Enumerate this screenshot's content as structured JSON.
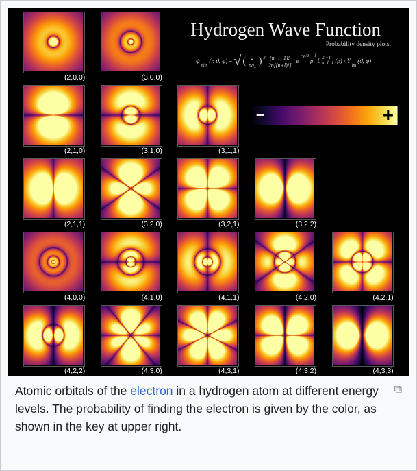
{
  "figure": {
    "title": "Hydrogen Wave Function",
    "subtitle": "Probability density plots.",
    "equation": {
      "lhs_psi": "ψ",
      "lhs_sub": "nlm",
      "lhs_args": "(r, ϑ, φ)",
      "equals": "=",
      "frac1_num": "2",
      "frac1_den": "na₀",
      "pow3": "3",
      "frac2_num": "(n−l−1)!",
      "frac2_den": "2n[(n+l)!]",
      "euler": "e",
      "e_sup": "−ρ/2",
      "rho": "ρ",
      "rho_sup": "l",
      "laguerre": "L",
      "laguerre_sup": "2l+1",
      "laguerre_sub": "n−l−1",
      "laguerre_args": "(ρ)",
      "cdot": "·",
      "harmonic": "Y",
      "harmonic_sub": "lm",
      "harmonic_args": "(ϑ, φ)"
    },
    "key": {
      "minus_label": "−",
      "plus_label": "+",
      "gradient": [
        "#000004",
        "#160b39",
        "#420a68",
        "#6a176e",
        "#932667",
        "#bc3754",
        "#dd513a",
        "#f37819",
        "#fca50a",
        "#f6d746",
        "#fcffa4"
      ]
    },
    "rows": [
      {
        "tiles": [
          {
            "label": "(2,0,0)",
            "n": 2,
            "l": 0,
            "m": 0
          },
          {
            "label": "(3,0,0)",
            "n": 3,
            "l": 0,
            "m": 0
          }
        ]
      },
      {
        "tiles": [
          {
            "label": "(2,1,0)",
            "n": 2,
            "l": 1,
            "m": 0
          },
          {
            "label": "(3,1,0)",
            "n": 3,
            "l": 1,
            "m": 0
          },
          {
            "label": "(3,1,1)",
            "n": 3,
            "l": 1,
            "m": 1
          }
        ]
      },
      {
        "tiles": [
          {
            "label": "(2,1,1)",
            "n": 2,
            "l": 1,
            "m": 1
          },
          {
            "label": "(3,2,0)",
            "n": 3,
            "l": 2,
            "m": 0
          },
          {
            "label": "(3,2,1)",
            "n": 3,
            "l": 2,
            "m": 1
          },
          {
            "label": "(3,2,2)",
            "n": 3,
            "l": 2,
            "m": 2
          }
        ]
      },
      {
        "tiles": [
          {
            "label": "(4,0,0)",
            "n": 4,
            "l": 0,
            "m": 0
          },
          {
            "label": "(4,1,0)",
            "n": 4,
            "l": 1,
            "m": 0
          },
          {
            "label": "(4,1,1)",
            "n": 4,
            "l": 1,
            "m": 1
          },
          {
            "label": "(4,2,0)",
            "n": 4,
            "l": 2,
            "m": 0
          },
          {
            "label": "(4,2,1)",
            "n": 4,
            "l": 2,
            "m": 1
          }
        ]
      },
      {
        "tiles": [
          {
            "label": "(4,2,2)",
            "n": 4,
            "l": 2,
            "m": 2
          },
          {
            "label": "(4,3,0)",
            "n": 4,
            "l": 3,
            "m": 0
          },
          {
            "label": "(4,3,1)",
            "n": 4,
            "l": 3,
            "m": 1
          },
          {
            "label": "(4,3,2)",
            "n": 4,
            "l": 3,
            "m": 2
          },
          {
            "label": "(4,3,3)",
            "n": 4,
            "l": 3,
            "m": 3
          }
        ]
      }
    ]
  },
  "caption": {
    "text_before_link": "Atomic orbitals of the ",
    "link_text": "electron",
    "text_after_link": " in a hydrogen atom at different energy levels. The probability of finding the electron is given by the color, as shown in the key at upper right.",
    "link_color": "#3366cc",
    "text_color": "#202122"
  },
  "icons": {
    "enlarge": "⧉"
  }
}
